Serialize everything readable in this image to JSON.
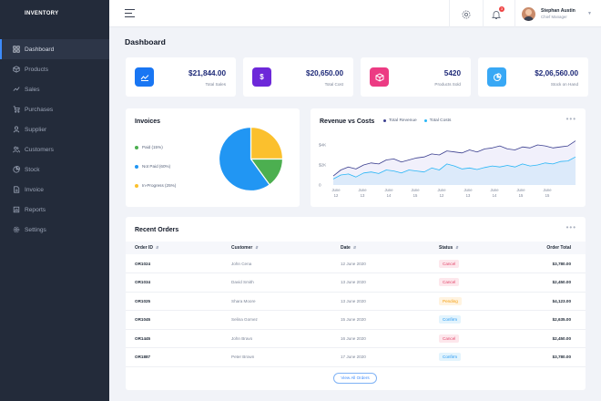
{
  "brand": "INVENTORY",
  "sidebar": {
    "items": [
      {
        "label": "Dashboard",
        "icon": "dashboard-icon"
      },
      {
        "label": "Products",
        "icon": "box-icon"
      },
      {
        "label": "Sales",
        "icon": "trend-icon"
      },
      {
        "label": "Purchases",
        "icon": "cart-icon"
      },
      {
        "label": "Supplier",
        "icon": "user-icon"
      },
      {
        "label": "Customers",
        "icon": "users-icon"
      },
      {
        "label": "Stock",
        "icon": "pie-icon"
      },
      {
        "label": "Invoice",
        "icon": "document-icon"
      },
      {
        "label": "Reports",
        "icon": "report-icon"
      },
      {
        "label": "Settings",
        "icon": "gear-icon"
      }
    ],
    "active": "Dashboard"
  },
  "topbar": {
    "notification_count": "3",
    "user_name": "Stephan Austin",
    "user_role": "Chief Manager"
  },
  "page_title": "Dashboard",
  "stats": [
    {
      "value": "$21,844.00",
      "label": "Total Sales",
      "color": "#1976f3",
      "icon": "trend-icon"
    },
    {
      "value": "$20,650.00",
      "label": "Total Cost",
      "color": "#6d28d9",
      "icon": "dollar-icon"
    },
    {
      "value": "5420",
      "label": "Products Sold",
      "color": "#ec3b83",
      "icon": "cube-icon"
    },
    {
      "value": "$2,06,560.00",
      "label": "Stock on Hand",
      "color": "#38a8f5",
      "icon": "pie-icon"
    }
  ],
  "invoices": {
    "title": "Invoices",
    "legend": [
      {
        "label": "Paid (15%)",
        "color": "#4caf50"
      },
      {
        "label": "Not Paid (60%)",
        "color": "#2196f3"
      },
      {
        "label": "In-Progress (25%)",
        "color": "#fbc02d"
      }
    ]
  },
  "revenue_chart": {
    "title": "Revenue vs Costs",
    "more": "•••"
  },
  "chart_data": [
    {
      "type": "pie",
      "labels": [
        "Paid",
        "Not Paid",
        "In-Progress"
      ],
      "values": [
        15,
        60,
        25
      ],
      "colors": [
        "#4caf50",
        "#2196f3",
        "#fbc02d"
      ]
    },
    {
      "type": "area",
      "title": "Revenue vs Costs",
      "x_tick_labels": [
        [
          "June",
          "12"
        ],
        [
          "June",
          "13"
        ],
        [
          "June",
          "14"
        ],
        [
          "June",
          "15"
        ],
        [
          "June",
          "12"
        ],
        [
          "June",
          "13"
        ],
        [
          "June",
          "14"
        ],
        [
          "June",
          "15"
        ],
        [
          "June",
          "15"
        ]
      ],
      "y_tick_labels": [
        "$4K",
        "$2K",
        "0"
      ],
      "ylim": [
        0,
        5000
      ],
      "x": [
        0,
        1,
        2,
        3,
        4,
        5,
        6,
        7,
        8,
        9,
        10,
        11,
        12,
        13,
        14,
        15,
        16,
        17,
        18,
        19,
        20,
        21,
        22,
        23,
        24,
        25,
        26,
        27,
        28,
        29,
        30,
        31,
        32
      ],
      "series": [
        {
          "name": "Total Revenue",
          "color": "#3b3f8f",
          "values": [
            900,
            1500,
            1800,
            1600,
            2000,
            2200,
            2100,
            2500,
            2600,
            2300,
            2500,
            2700,
            2800,
            3100,
            3000,
            3400,
            3300,
            3200,
            3500,
            3300,
            3600,
            3700,
            3900,
            3600,
            3500,
            3800,
            3700,
            4000,
            3900,
            3700,
            3800,
            3900,
            4400
          ]
        },
        {
          "name": "Total Costs",
          "color": "#29b6f6",
          "values": [
            600,
            1000,
            1100,
            800,
            1200,
            1300,
            1150,
            1500,
            1400,
            1200,
            1500,
            1400,
            1300,
            1700,
            1500,
            2100,
            1900,
            1600,
            1700,
            1550,
            1750,
            1900,
            1800,
            1950,
            1800,
            2100,
            1900,
            2000,
            2200,
            2100,
            2350,
            2400,
            2800
          ]
        }
      ]
    }
  ],
  "orders": {
    "title": "Recent Orders",
    "more": "•••",
    "columns": [
      "Order ID",
      "Customer",
      "Date",
      "Status",
      "Order Total"
    ],
    "rows": [
      {
        "id": "OR1024",
        "customer": "John Cena",
        "date": "12 June 2020",
        "status": "Cancel",
        "total": "$3,780.00"
      },
      {
        "id": "OR1034",
        "customer": "David Smith",
        "date": "13 June 2020",
        "status": "Cancel",
        "total": "$2,450.00"
      },
      {
        "id": "OR1025",
        "customer": "Shara Moore",
        "date": "13 June 2020",
        "status": "Pending",
        "total": "$4,123.00"
      },
      {
        "id": "OR1045",
        "customer": "Selina Gomez",
        "date": "15 June 2020",
        "status": "Confirm",
        "total": "$2,635.00"
      },
      {
        "id": "OR1445",
        "customer": "John Bravo",
        "date": "16 June 2020",
        "status": "Cancel",
        "total": "$2,450.00"
      },
      {
        "id": "OR1887",
        "customer": "Peter Brown",
        "date": "17 June 2020",
        "status": "Confirm",
        "total": "$3,780.00"
      }
    ],
    "view_all": "View All Orders"
  },
  "status_colors": {
    "Cancel": {
      "bg": "#fde7ec",
      "fg": "#e2466b"
    },
    "Pending": {
      "bg": "#fff3e0",
      "fg": "#f59e0b"
    },
    "Confirm": {
      "bg": "#e3f4fd",
      "fg": "#2196f3"
    }
  }
}
